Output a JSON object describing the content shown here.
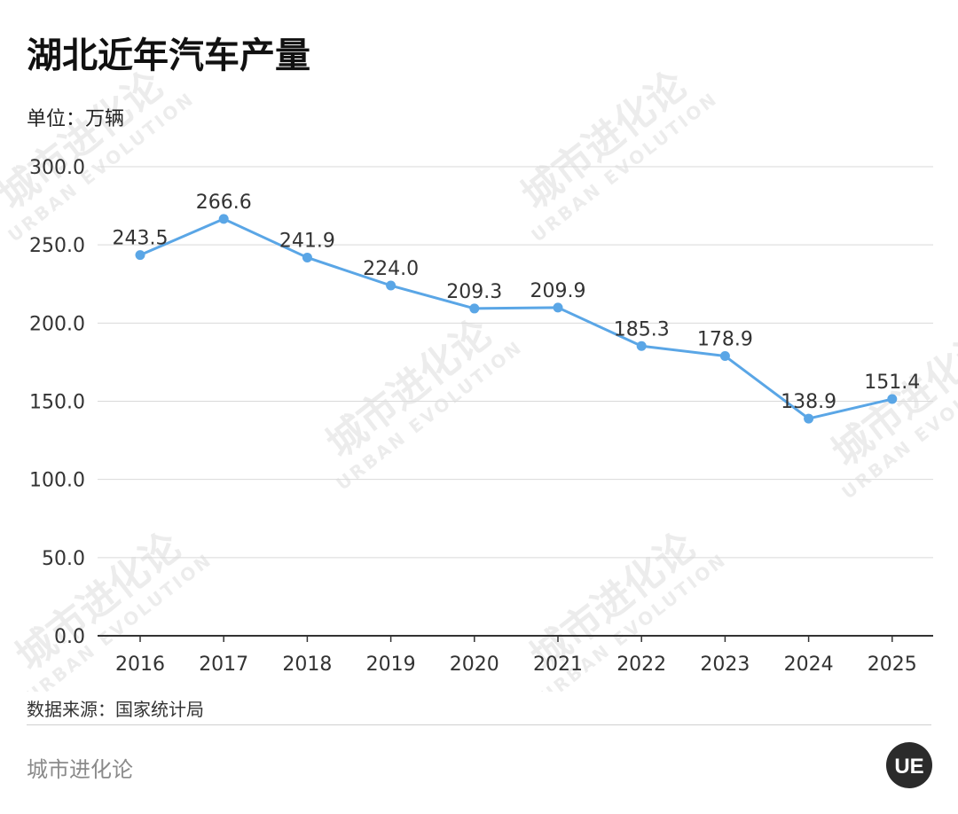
{
  "title": "湖北近年汽车产量",
  "unit_label": "单位：万辆",
  "source": "数据来源：国家统计局",
  "brand": "城市进化论",
  "watermark": {
    "text": "城市进化论",
    "subtext": "URBAN EVOLUTION"
  },
  "logo": {
    "text": "UE",
    "color": "#2b2b2b"
  },
  "colors": {
    "line": "#5aa6e6",
    "grid": "#d9d9d9",
    "axis": "#333333",
    "text": "#333333"
  },
  "chart_data": {
    "type": "line",
    "x": [
      "2016",
      "2017",
      "2018",
      "2019",
      "2020",
      "2021",
      "2022",
      "2023",
      "2024",
      "2025"
    ],
    "series": [
      {
        "values": [
          243.5,
          266.6,
          241.9,
          224.0,
          209.3,
          209.9,
          185.3,
          178.9,
          138.9,
          151.4
        ]
      }
    ],
    "data_labels": [
      "243.5",
      "266.6",
      "241.9",
      "224.0",
      "209.3",
      "209.9",
      "185.3",
      "178.9",
      "138.9",
      "151.4"
    ],
    "y_ticks": [
      "0.0",
      "50.0",
      "100.0",
      "150.0",
      "200.0",
      "250.0",
      "300.0"
    ],
    "ylim": [
      0,
      300
    ],
    "grid": true,
    "legend": "none"
  }
}
